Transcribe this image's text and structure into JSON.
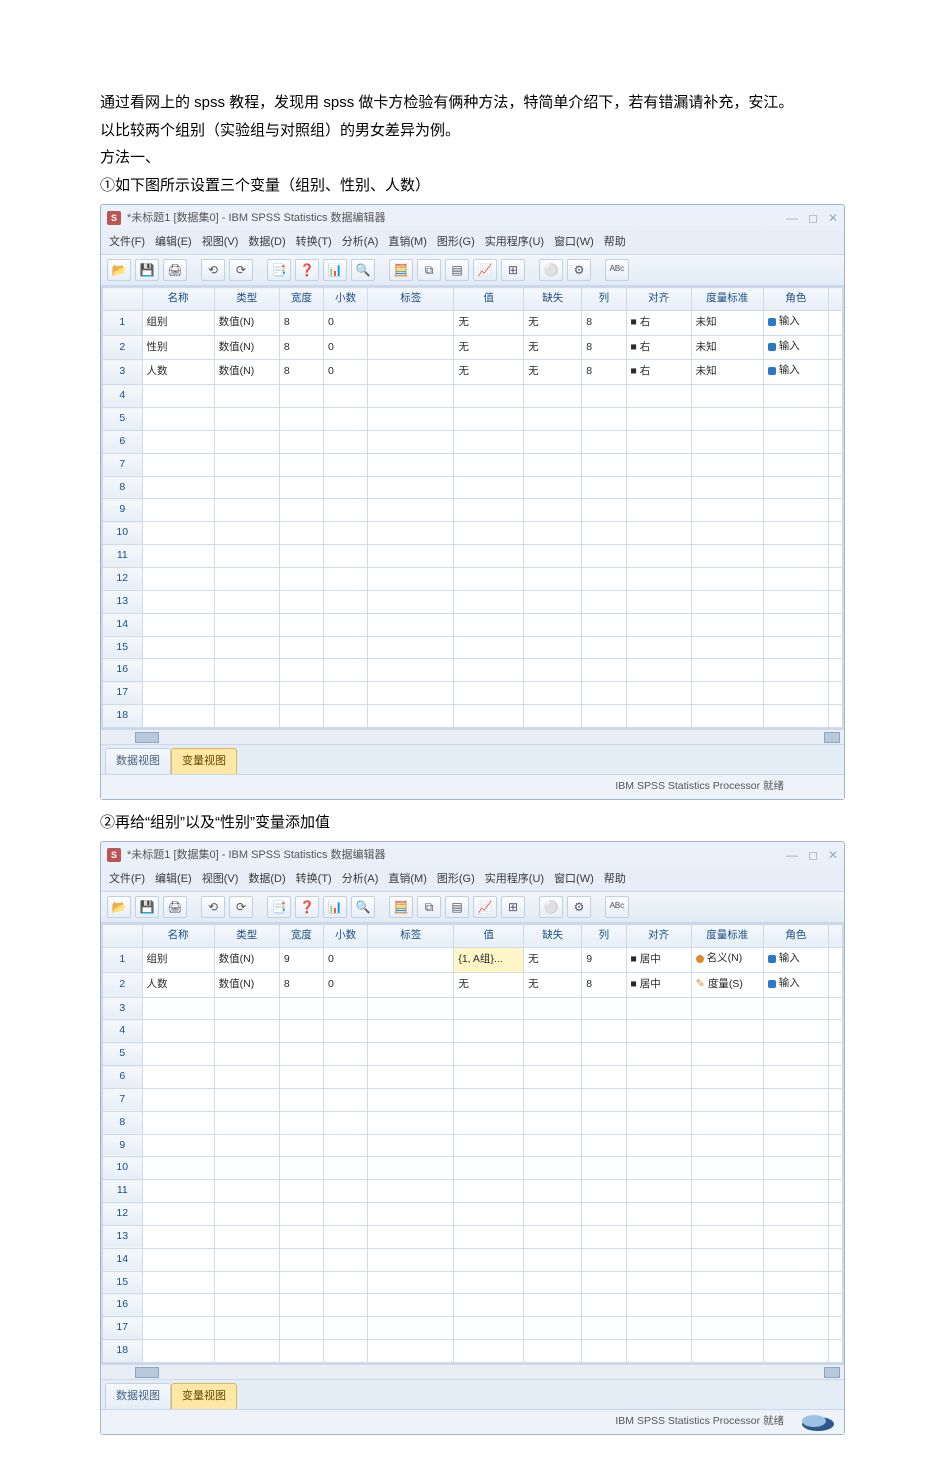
{
  "doc": {
    "p1": "通过看网上的 spss 教程，发现用 spss 做卡方检验有俩种方法，特简单介绍下，若有错漏请补充，安江。",
    "p2": "以比较两个组别（实验组与对照组）的男女差异为例。",
    "p3": "方法一、",
    "p4": "①如下图所示设置三个变量（组别、性别、人数）",
    "p5": "②再给“组别”以及“性别”变量添加值"
  },
  "spss": {
    "title1": "*未标题1 [数据集0] - IBM SPSS Statistics 数据编辑器",
    "title2": "*未标题1 [数据集0] - IBM SPSS Statistics 数据编辑器",
    "menus": [
      "文件(F)",
      "编辑(E)",
      "视图(V)",
      "数据(D)",
      "转换(T)",
      "分析(A)",
      "直销(M)",
      "图形(G)",
      "实用程序(U)",
      "窗口(W)",
      "帮助"
    ],
    "columns": [
      "",
      "名称",
      "类型",
      "宽度",
      "小数",
      "标签",
      "值",
      "缺失",
      "列",
      "对齐",
      "度量标准",
      "角色",
      ""
    ],
    "status": "IBM SPSS Statistics Processor 就绪",
    "tabs": {
      "data": "数据视图",
      "var": "变量视图"
    }
  },
  "sheet1": {
    "rows": [
      {
        "no": "1",
        "name": "组别",
        "type": "数值(N)",
        "width": "8",
        "dec": "0",
        "label": "",
        "values": "无",
        "missing": "无",
        "cols": "8",
        "align": "■ 右",
        "measure": "未知",
        "role": "↘ 输入"
      },
      {
        "no": "2",
        "name": "性别",
        "type": "数值(N)",
        "width": "8",
        "dec": "0",
        "label": "",
        "values": "无",
        "missing": "无",
        "cols": "8",
        "align": "■ 右",
        "measure": "未知",
        "role": "↘ 输入"
      },
      {
        "no": "3",
        "name": "人数",
        "type": "数值(N)",
        "width": "8",
        "dec": "0",
        "label": "",
        "values": "无",
        "missing": "无",
        "cols": "8",
        "align": "■ 右",
        "measure": "未知",
        "role": "↘ 输入"
      }
    ],
    "emptyRows": [
      "4",
      "5",
      "6",
      "7",
      "8",
      "9",
      "10",
      "11",
      "12",
      "13",
      "14",
      "15",
      "16",
      "17",
      "18"
    ]
  },
  "sheet2": {
    "rows": [
      {
        "no": "1",
        "name": "组别",
        "type": "数值(N)",
        "width": "9",
        "dec": "0",
        "label": "",
        "values": "{1, A组}...",
        "missing": "无",
        "cols": "9",
        "align": "■ 居中",
        "measure": "名义(N)",
        "role": "↘ 输入",
        "hl": true,
        "measIcon": "orange"
      },
      {
        "no": "2",
        "name": "人数",
        "type": "数值(N)",
        "width": "8",
        "dec": "0",
        "label": "",
        "values": "无",
        "missing": "无",
        "cols": "8",
        "align": "■ 居中",
        "measure": "度量(S)",
        "role": "↘ 输入",
        "hl": false,
        "measIcon": "ruler"
      }
    ],
    "emptyRows": [
      "3",
      "4",
      "5",
      "6",
      "7",
      "8",
      "9",
      "10",
      "11",
      "12",
      "13",
      "14",
      "15",
      "16",
      "17",
      "18"
    ]
  },
  "toolbar": {
    "icons": [
      "📂",
      "💾",
      "🖨",
      "⟲",
      "⟳",
      "📑",
      "❓",
      "📊",
      "🔍",
      "🧮",
      "⧉",
      "▤",
      "📈",
      "⊞",
      "⚪",
      "⚙",
      "ᴬᴮᶜ"
    ]
  },
  "colors": {
    "border": "#9db6cf",
    "header_bg": "#e6eef7",
    "grid": "#d0dbe8",
    "highlight": "#fff6c8",
    "active_tab": "#ffe8a6",
    "title_text": "#1a4e84"
  }
}
